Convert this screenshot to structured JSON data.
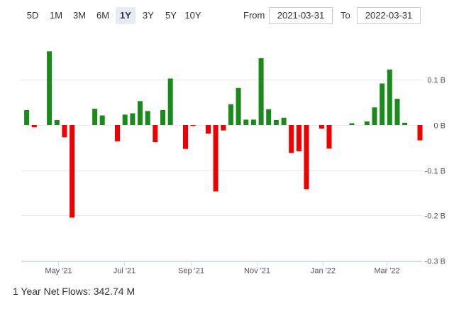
{
  "range_buttons": [
    "5D",
    "1M",
    "3M",
    "6M",
    "1Y",
    "3Y",
    "5Y",
    "10Y"
  ],
  "active_range": "1Y",
  "date_range": {
    "from_label": "From",
    "from_value": "2021-03-31",
    "to_label": "To",
    "to_value": "2022-03-31"
  },
  "footer": {
    "label": "1 Year Net Flows:",
    "value": "342.74 M"
  },
  "colors": {
    "positive": "#1a8a1a",
    "negative": "#ee0000",
    "grid": "#e6e6e6",
    "axis": "#ccd6eb"
  },
  "chart_data": {
    "type": "bar",
    "title": "",
    "xlabel": "",
    "ylabel": "",
    "y_unit": "B",
    "ylim": [
      -0.3,
      0.15
    ],
    "y_ticks": [
      0.1,
      0,
      -0.1,
      -0.2,
      -0.3
    ],
    "y_tick_labels": [
      "0.1 B",
      "0 B",
      "-0.1 B",
      "-0.2 B",
      "-0.3 B"
    ],
    "x_tick_labels": [
      {
        "date": "2021-05-01",
        "label": "May '21"
      },
      {
        "date": "2021-07-01",
        "label": "Jul '21"
      },
      {
        "date": "2021-09-01",
        "label": "Sep '21"
      },
      {
        "date": "2021-11-01",
        "label": "Nov '21"
      },
      {
        "date": "2022-01-01",
        "label": "Jan '22"
      },
      {
        "date": "2022-03-01",
        "label": "Mar '22"
      }
    ],
    "grid": true,
    "legend": "none",
    "x_range": [
      "2021-03-28",
      "2022-04-03"
    ],
    "bars": [
      {
        "date": "2021-04-02",
        "value": 0.033
      },
      {
        "date": "2021-04-09",
        "value": -0.005
      },
      {
        "date": "2021-04-16",
        "value": 0
      },
      {
        "date": "2021-04-23",
        "value": 0.163
      },
      {
        "date": "2021-04-30",
        "value": 0.011
      },
      {
        "date": "2021-05-07",
        "value": -0.027
      },
      {
        "date": "2021-05-14",
        "value": -0.205
      },
      {
        "date": "2021-05-21",
        "value": 0
      },
      {
        "date": "2021-05-28",
        "value": 0
      },
      {
        "date": "2021-06-04",
        "value": 0.036
      },
      {
        "date": "2021-06-11",
        "value": 0.021
      },
      {
        "date": "2021-06-18",
        "value": 0
      },
      {
        "date": "2021-06-25",
        "value": -0.036
      },
      {
        "date": "2021-07-02",
        "value": 0.023
      },
      {
        "date": "2021-07-09",
        "value": 0.026
      },
      {
        "date": "2021-07-16",
        "value": 0.053
      },
      {
        "date": "2021-07-23",
        "value": 0.031
      },
      {
        "date": "2021-07-30",
        "value": -0.038
      },
      {
        "date": "2021-08-06",
        "value": 0.033
      },
      {
        "date": "2021-08-13",
        "value": 0.103
      },
      {
        "date": "2021-08-20",
        "value": 0
      },
      {
        "date": "2021-08-27",
        "value": -0.053
      },
      {
        "date": "2021-09-03",
        "value": -0.002
      },
      {
        "date": "2021-09-10",
        "value": 0
      },
      {
        "date": "2021-09-17",
        "value": -0.019
      },
      {
        "date": "2021-09-24",
        "value": -0.147
      },
      {
        "date": "2021-10-01",
        "value": -0.012
      },
      {
        "date": "2021-10-08",
        "value": 0.046
      },
      {
        "date": "2021-10-15",
        "value": 0.082
      },
      {
        "date": "2021-10-22",
        "value": 0.012
      },
      {
        "date": "2021-10-29",
        "value": 0.012
      },
      {
        "date": "2021-11-05",
        "value": 0.148
      },
      {
        "date": "2021-11-12",
        "value": 0.035
      },
      {
        "date": "2021-11-19",
        "value": 0.011
      },
      {
        "date": "2021-11-26",
        "value": 0.016
      },
      {
        "date": "2021-12-03",
        "value": -0.062
      },
      {
        "date": "2021-12-10",
        "value": -0.058
      },
      {
        "date": "2021-12-17",
        "value": -0.142
      },
      {
        "date": "2021-12-24",
        "value": 0
      },
      {
        "date": "2021-12-31",
        "value": -0.008
      },
      {
        "date": "2022-01-07",
        "value": -0.052
      },
      {
        "date": "2022-01-14",
        "value": 0
      },
      {
        "date": "2022-01-21",
        "value": 0
      },
      {
        "date": "2022-01-28",
        "value": 0.004
      },
      {
        "date": "2022-02-04",
        "value": 0
      },
      {
        "date": "2022-02-11",
        "value": 0.008
      },
      {
        "date": "2022-02-18",
        "value": 0.039
      },
      {
        "date": "2022-02-25",
        "value": 0.092
      },
      {
        "date": "2022-03-04",
        "value": 0.123
      },
      {
        "date": "2022-03-11",
        "value": 0.058
      },
      {
        "date": "2022-03-18",
        "value": 0.005
      },
      {
        "date": "2022-03-25",
        "value": 0
      },
      {
        "date": "2022-04-01",
        "value": -0.034
      }
    ]
  }
}
